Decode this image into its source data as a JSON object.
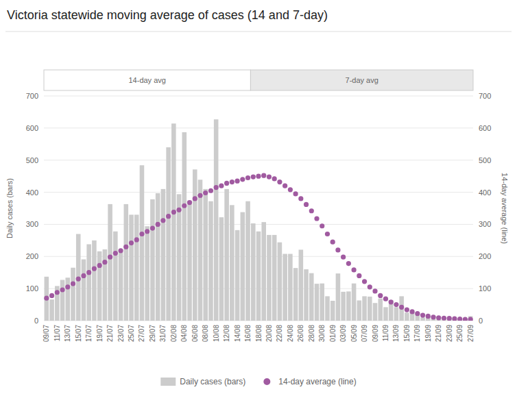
{
  "chart_data": {
    "type": "bar",
    "title": "Victoria statewide moving average of cases (14 and 7-day)",
    "y_label": "Daily cases (bars)",
    "y2_label": "14-day average (line)",
    "categories": [
      "09/07",
      null,
      "11/07",
      null,
      "13/07",
      null,
      "15/07",
      null,
      "17/07",
      null,
      "19/07",
      null,
      "21/07",
      null,
      "23/07",
      null,
      "25/07",
      null,
      "27/07",
      null,
      "29/07",
      null,
      "31/07",
      null,
      "02/08",
      null,
      "04/08",
      null,
      "06/08",
      null,
      "08/08",
      null,
      "10/08",
      null,
      "12/08",
      null,
      "14/08",
      null,
      "16/08",
      null,
      "18/08",
      null,
      "20/08",
      null,
      "22/08",
      null,
      "24/08",
      null,
      "26/08",
      null,
      "28/08",
      null,
      "30/08",
      null,
      "01/09",
      null,
      "03/09",
      null,
      "05/09",
      null,
      "07/09",
      null,
      "09/09",
      null,
      "11/09",
      null,
      "13/09",
      null,
      "15/09",
      null,
      "17/09",
      null,
      "19/09",
      null,
      "21/09",
      null,
      "23/09",
      null,
      "25/09",
      null,
      "27/09"
    ],
    "series": [
      {
        "name": "Daily cases (bars)",
        "type": "bar",
        "color": "#cccccc",
        "values": [
          137,
          66,
          108,
          127,
          134,
          165,
          270,
          191,
          238,
          250,
          216,
          222,
          363,
          278,
          216,
          363,
          330,
          330,
          484,
          294,
          378,
          397,
          410,
          540,
          614,
          394,
          587,
          374,
          471,
          439,
          410,
          372,
          627,
          322,
          410,
          360,
          282,
          338,
          372,
          303,
          278,
          307,
          267,
          267,
          244,
          208,
          208,
          164,
          221,
          160,
          148,
          115,
          116,
          76,
          62,
          147,
          90,
          91,
          116,
          63,
          76,
          75,
          55,
          69,
          42,
          64,
          42,
          76,
          25,
          25,
          25,
          10,
          12,
          15,
          12,
          10,
          8,
          7,
          3,
          6,
          14
        ]
      },
      {
        "name": "14-day average (line)",
        "type": "scatter",
        "marker": "circle",
        "color": "#a05aa0",
        "axis": "y2",
        "values": [
          70,
          78,
          88,
          96,
          105,
          115,
          130,
          140,
          150,
          162,
          172,
          182,
          198,
          210,
          218,
          230,
          242,
          252,
          270,
          278,
          288,
          300,
          312,
          325,
          338,
          345,
          358,
          368,
          380,
          390,
          398,
          405,
          415,
          420,
          428,
          432,
          435,
          440,
          445,
          448,
          450,
          452,
          448,
          442,
          432,
          420,
          408,
          395,
          380,
          362,
          342,
          318,
          295,
          270,
          245,
          220,
          198,
          178,
          158,
          140,
          122,
          105,
          92,
          78,
          68,
          58,
          50,
          42,
          34,
          28,
          22,
          17,
          14,
          11,
          9,
          8,
          7,
          6,
          5,
          4,
          4
        ]
      }
    ],
    "annotations": [
      {
        "text": "14-day avg",
        "start": 0
      },
      {
        "text": "7-day avg",
        "start": 39
      }
    ],
    "ylim": [
      0,
      700
    ],
    "yticks": [
      0,
      100,
      200,
      300,
      400,
      500,
      600,
      700
    ],
    "y2lim": [
      0,
      700
    ],
    "y2ticks": [
      0,
      100,
      200,
      300,
      400,
      500,
      600,
      700
    ],
    "grid": true,
    "legend": "bottom"
  }
}
